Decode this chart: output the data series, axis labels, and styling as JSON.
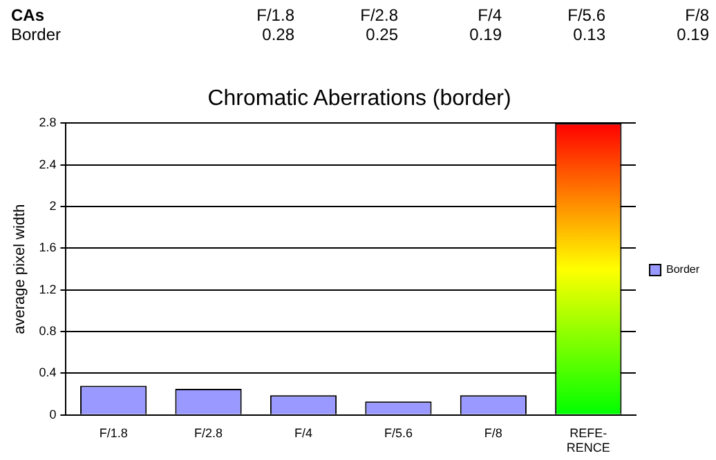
{
  "chart_data": [
    {
      "type": "other",
      "annotations": [
        "CAs"
      ],
      "categories": [
        "F/1.8",
        "F/2.8",
        "F/4",
        "F/5.6",
        "F/8"
      ],
      "series": [
        {
          "name": "Border",
          "values": [
            0.28,
            0.25,
            0.19,
            0.13,
            0.19
          ]
        }
      ],
      "data_labels": true
    },
    {
      "type": "bar",
      "title": "Chromatic Aberrations (border)",
      "ylabel": "average pixel width",
      "categories": [
        "F/1.8",
        "F/2.8",
        "F/4",
        "F/5.6",
        "F/8",
        "REFE-RENCE"
      ],
      "series": [
        {
          "name": "Border",
          "color": "#9999ff",
          "values": [
            0.28,
            0.25,
            0.19,
            0.13,
            0.19,
            null
          ]
        },
        {
          "color": "#ff0000",
          "values": [
            null,
            null,
            null,
            null,
            null,
            2.8
          ]
        }
      ],
      "ylim": [
        0,
        2.8
      ],
      "yticks": [
        0,
        0.4,
        0.8,
        1.2,
        1.6,
        2,
        2.4,
        2.8
      ],
      "grid": "y",
      "legend": "right"
    }
  ]
}
